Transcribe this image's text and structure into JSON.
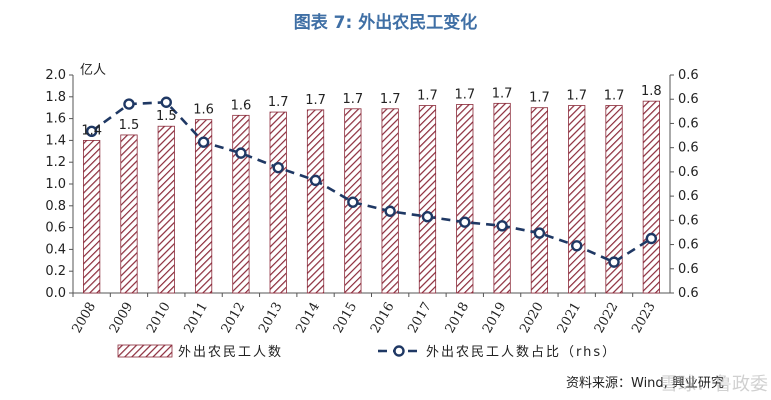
{
  "figure_title": "图表 7:  外出农民工变化",
  "source": "资料来源：Wind, 興业研究",
  "watermark": "雪球：鲁政委",
  "chart_data": {
    "type": "bar",
    "categories": [
      "2008",
      "2009",
      "2010",
      "2011",
      "2012",
      "2013",
      "2014",
      "2015",
      "2016",
      "2017",
      "2018",
      "2019",
      "2020",
      "2021",
      "2022",
      "2023"
    ],
    "left_axis": {
      "unit": "亿人",
      "ylim": [
        0,
        2.0
      ],
      "ticks": [
        "0.0",
        "0.2",
        "0.4",
        "0.6",
        "0.8",
        "1.0",
        "1.2",
        "1.4",
        "1.6",
        "1.8",
        "2.0"
      ]
    },
    "right_axis": {
      "ticks": [
        "0.6",
        "0.6",
        "0.6",
        "0.6",
        "0.6",
        "0.6",
        "0.6",
        "0.6",
        "0.6",
        "0.6"
      ]
    },
    "series": [
      {
        "name": "外出农民工人数",
        "kind": "bar",
        "axis": "left",
        "values": [
          1.4,
          1.45,
          1.53,
          1.59,
          1.63,
          1.66,
          1.68,
          1.69,
          1.69,
          1.72,
          1.73,
          1.74,
          1.7,
          1.72,
          1.72,
          1.76
        ],
        "labels": [
          "1.4",
          "1.5",
          "1.5",
          "1.6",
          "1.6",
          "1.7",
          "1.7",
          "1.7",
          "1.7",
          "1.7",
          "1.7",
          "1.7",
          "1.7",
          "1.7",
          "1.7",
          "1.8"
        ],
        "color": "#8b2a3a"
      },
      {
        "name": "外出农民工人数占比（rhs）",
        "kind": "line",
        "axis": "right",
        "values": [
          0.634,
          0.649,
          0.65,
          0.628,
          0.622,
          0.614,
          0.607,
          0.595,
          0.59,
          0.587,
          0.584,
          0.582,
          0.578,
          0.571,
          0.562,
          0.575
        ],
        "color": "#1f3864"
      }
    ],
    "legend_position": "bottom",
    "grid": false
  }
}
